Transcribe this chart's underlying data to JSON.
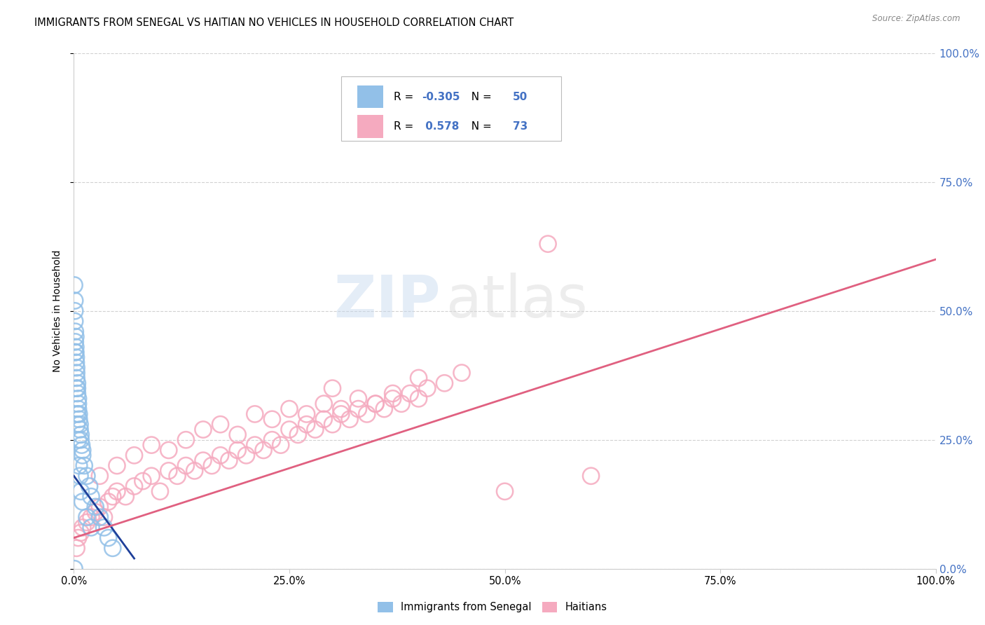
{
  "title": "IMMIGRANTS FROM SENEGAL VS HAITIAN NO VEHICLES IN HOUSEHOLD CORRELATION CHART",
  "source": "Source: ZipAtlas.com",
  "ylabel": "No Vehicles in Household",
  "ytick_labels": [
    "0.0%",
    "25.0%",
    "50.0%",
    "75.0%",
    "100.0%"
  ],
  "ytick_values": [
    0,
    25,
    50,
    75,
    100
  ],
  "xtick_labels": [
    "0.0%",
    "25.0%",
    "50.0%",
    "75.0%",
    "100.0%"
  ],
  "xtick_values": [
    0,
    25,
    50,
    75,
    100
  ],
  "legend_label_blue": "Immigrants from Senegal",
  "legend_label_pink": "Haitians",
  "blue_scatter_color": "#92C0E8",
  "pink_scatter_color": "#F5AABF",
  "blue_line_color": "#1E3F99",
  "pink_line_color": "#E06080",
  "right_label_color": "#4472C4",
  "legend_r_color": "#4472C4",
  "legend_n_color": "#4472C4",
  "background_color": "#FFFFFF",
  "grid_color": "#CCCCCC",
  "title_fontsize": 10.5,
  "xlim": [
    0,
    100
  ],
  "ylim": [
    0,
    100
  ],
  "blue_r_text": "-0.305",
  "blue_n_text": "50",
  "pink_r_text": "0.578",
  "pink_n_text": "73",
  "blue_trend_x": [
    0,
    7
  ],
  "blue_trend_y": [
    18,
    2
  ],
  "pink_trend_x": [
    0,
    100
  ],
  "pink_trend_y": [
    6,
    60
  ],
  "blue_x": [
    0.05,
    0.1,
    0.1,
    0.15,
    0.15,
    0.2,
    0.2,
    0.25,
    0.25,
    0.3,
    0.3,
    0.3,
    0.4,
    0.4,
    0.4,
    0.5,
    0.5,
    0.5,
    0.6,
    0.6,
    0.7,
    0.7,
    0.8,
    0.8,
    0.9,
    1.0,
    1.0,
    1.2,
    1.5,
    1.8,
    2.0,
    2.5,
    3.0,
    3.5,
    4.0,
    4.5,
    0.1,
    0.2,
    0.3,
    0.4,
    0.5,
    0.6,
    0.7,
    0.8,
    1.0,
    1.5,
    2.0,
    0.15,
    0.35,
    0.05
  ],
  "blue_y": [
    55,
    52,
    48,
    46,
    44,
    43,
    42,
    41,
    40,
    39,
    38,
    37,
    36,
    35,
    34,
    33,
    32,
    31,
    30,
    29,
    28,
    27,
    26,
    25,
    24,
    23,
    22,
    20,
    18,
    16,
    14,
    12,
    10,
    8,
    6,
    4,
    50,
    45,
    35,
    30,
    25,
    20,
    18,
    15,
    13,
    10,
    8,
    42,
    28,
    0
  ],
  "pink_x": [
    0.3,
    0.5,
    0.8,
    1.0,
    1.5,
    2.0,
    2.5,
    3.0,
    3.5,
    4.0,
    4.5,
    5.0,
    6.0,
    7.0,
    8.0,
    9.0,
    10.0,
    11.0,
    12.0,
    13.0,
    14.0,
    15.0,
    16.0,
    17.0,
    18.0,
    19.0,
    20.0,
    21.0,
    22.0,
    23.0,
    24.0,
    25.0,
    26.0,
    27.0,
    28.0,
    29.0,
    30.0,
    31.0,
    32.0,
    33.0,
    34.0,
    35.0,
    36.0,
    37.0,
    38.0,
    39.0,
    40.0,
    41.0,
    43.0,
    45.0,
    3.0,
    5.0,
    7.0,
    9.0,
    11.0,
    13.0,
    15.0,
    17.0,
    19.0,
    21.0,
    23.0,
    25.0,
    27.0,
    29.0,
    31.0,
    33.0,
    35.0,
    37.0,
    40.0,
    55.0,
    30.0,
    60.0,
    50.0
  ],
  "pink_y": [
    4,
    6,
    7,
    8,
    9,
    10,
    11,
    12,
    10,
    13,
    14,
    15,
    14,
    16,
    17,
    18,
    15,
    19,
    18,
    20,
    19,
    21,
    20,
    22,
    21,
    23,
    22,
    24,
    23,
    25,
    24,
    27,
    26,
    28,
    27,
    29,
    28,
    30,
    29,
    31,
    30,
    32,
    31,
    33,
    32,
    34,
    33,
    35,
    36,
    38,
    18,
    20,
    22,
    24,
    23,
    25,
    27,
    28,
    26,
    30,
    29,
    31,
    30,
    32,
    31,
    33,
    32,
    34,
    37,
    63,
    35,
    18,
    15
  ]
}
